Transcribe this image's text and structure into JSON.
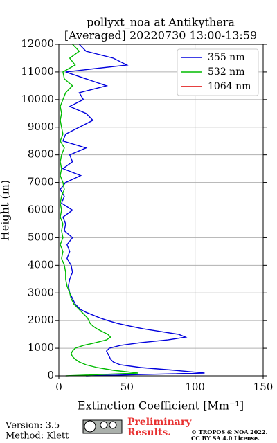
{
  "chart_data": {
    "type": "line",
    "title": "pollyxt_noa at Antikythera",
    "subtitle": "[Averaged] 20220730 13:00-13:59",
    "xlabel": "Extinction Coefficient [Mm⁻¹]",
    "ylabel": "Height (m)",
    "xlim": [
      0,
      150
    ],
    "xticks": [
      0,
      50,
      100,
      150
    ],
    "ylim": [
      0,
      12000
    ],
    "yticks": [
      0,
      1000,
      2000,
      3000,
      4000,
      5000,
      6000,
      7000,
      8000,
      9000,
      10000,
      11000,
      12000
    ],
    "grid": true,
    "legend": "upper right",
    "y": [
      0,
      100,
      200,
      300,
      400,
      500,
      600,
      700,
      800,
      900,
      1000,
      1100,
      1200,
      1300,
      1400,
      1500,
      1600,
      1700,
      1800,
      1900,
      2000,
      2100,
      2200,
      2300,
      2400,
      2500,
      2600,
      2700,
      2800,
      2900,
      3000,
      3250,
      3500,
      3750,
      4000,
      4250,
      4500,
      4750,
      5000,
      5250,
      5500,
      5750,
      6000,
      6250,
      6500,
      6750,
      7000,
      7250,
      7500,
      7750,
      8000,
      8250,
      8500,
      8750,
      9000,
      9250,
      9500,
      9750,
      10000,
      10250,
      10500,
      10750,
      11000,
      11250,
      11500,
      11750,
      12000
    ],
    "series": [
      {
        "name": "355 nm",
        "color": "#0000dd",
        "values": [
          20,
          107,
          85,
          60,
          45,
          40,
          38,
          37,
          36,
          35,
          37,
          45,
          60,
          80,
          93,
          88,
          75,
          62,
          52,
          43,
          36,
          30,
          25,
          20,
          16,
          14,
          12,
          11,
          10,
          9,
          8,
          7,
          8,
          10,
          9,
          6,
          8,
          6,
          10,
          4,
          5,
          3,
          10,
          2,
          4,
          1,
          5,
          16,
          3,
          10,
          8,
          20,
          3,
          5,
          15,
          25,
          20,
          8,
          18,
          15,
          35,
          20,
          5,
          50,
          40,
          20,
          15
        ]
      },
      {
        "name": "532 nm",
        "color": "#00bb00",
        "values": [
          5,
          58,
          40,
          28,
          20,
          15,
          12,
          10,
          9,
          10,
          12,
          18,
          27,
          35,
          38,
          36,
          32,
          28,
          25,
          23,
          22,
          21,
          19,
          17,
          15,
          13,
          11,
          10,
          9,
          8.5,
          8,
          6,
          5,
          5,
          4,
          2,
          3,
          1,
          3,
          2,
          3,
          1,
          2,
          1,
          2,
          4,
          3,
          1,
          2,
          1,
          2,
          4,
          1,
          3,
          2,
          1,
          2,
          1,
          3,
          5,
          10,
          4,
          3,
          12,
          8,
          15,
          10
        ]
      },
      {
        "name": "1064 nm",
        "color": "#dd0000",
        "values": [
          null,
          null,
          null,
          null,
          null,
          null,
          null,
          null,
          null,
          null,
          null,
          null,
          null,
          null,
          null,
          null,
          null,
          null,
          null,
          null,
          null,
          null,
          null,
          null,
          null,
          null,
          null,
          null,
          null,
          null,
          null,
          null,
          null,
          null,
          null,
          null,
          null,
          null,
          null,
          null,
          null,
          null,
          null,
          null,
          null,
          null,
          null,
          null,
          null,
          null,
          null,
          null,
          null,
          null,
          null,
          null,
          null,
          null,
          null,
          null,
          null,
          null,
          null,
          null,
          null,
          null,
          null
        ]
      }
    ]
  },
  "footer": {
    "version": "Version: 3.5",
    "method": "Method: Klett",
    "status_line1": "Preliminary",
    "status_line2": "Results.",
    "copyright_line1": "© TROPOS & NOA 2022.",
    "copyright_line2": "CC BY SA 4.0 License."
  }
}
